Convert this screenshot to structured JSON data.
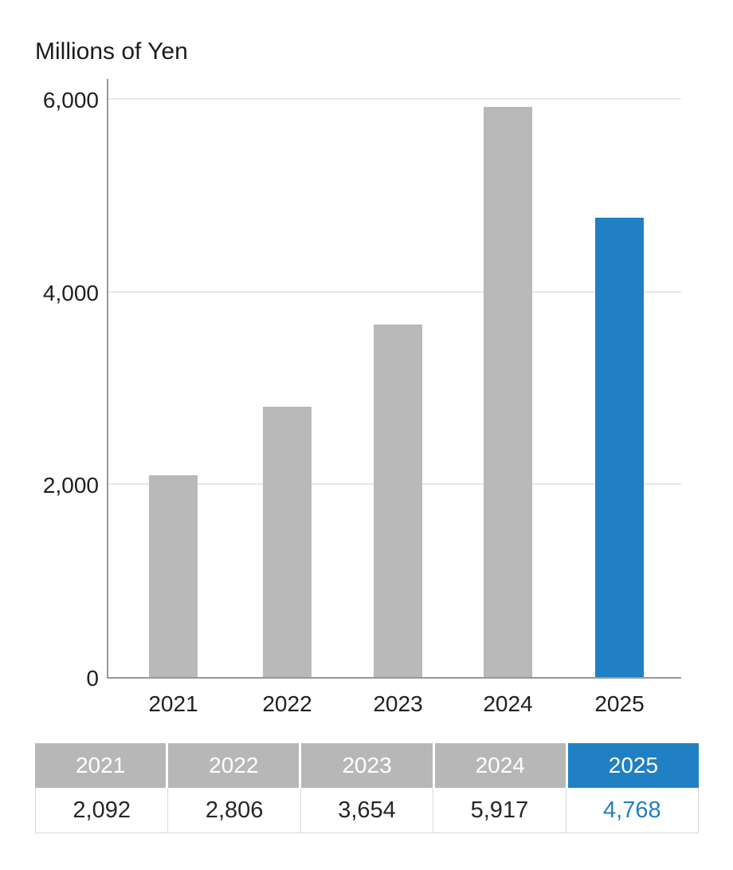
{
  "chart_data": {
    "type": "bar",
    "title": "Millions of Yen",
    "categories": [
      "2021",
      "2022",
      "2023",
      "2024",
      "2025"
    ],
    "values": [
      2092,
      2806,
      3654,
      5917,
      4768
    ],
    "xlabel": "",
    "ylabel": "Millions of Yen",
    "ylim": [
      0,
      6000
    ],
    "yticks": [
      0,
      2000,
      4000,
      6000
    ],
    "ytick_labels": [
      "0",
      "2,000",
      "4,000",
      "6,000"
    ],
    "grid": "horizontal",
    "legend": "none",
    "bar_color": "#b9b9b9",
    "highlight_index": 4,
    "highlight_color": "#2180c4"
  },
  "table": {
    "headers": [
      "2021",
      "2022",
      "2023",
      "2024",
      "2025"
    ],
    "values": [
      "2,092",
      "2,806",
      "3,654",
      "5,917",
      "4,768"
    ],
    "header_bg": "#b7b7b7",
    "highlight_index": 4,
    "highlight_bg": "#2180c4",
    "highlight_text_color": "#2180c4"
  }
}
